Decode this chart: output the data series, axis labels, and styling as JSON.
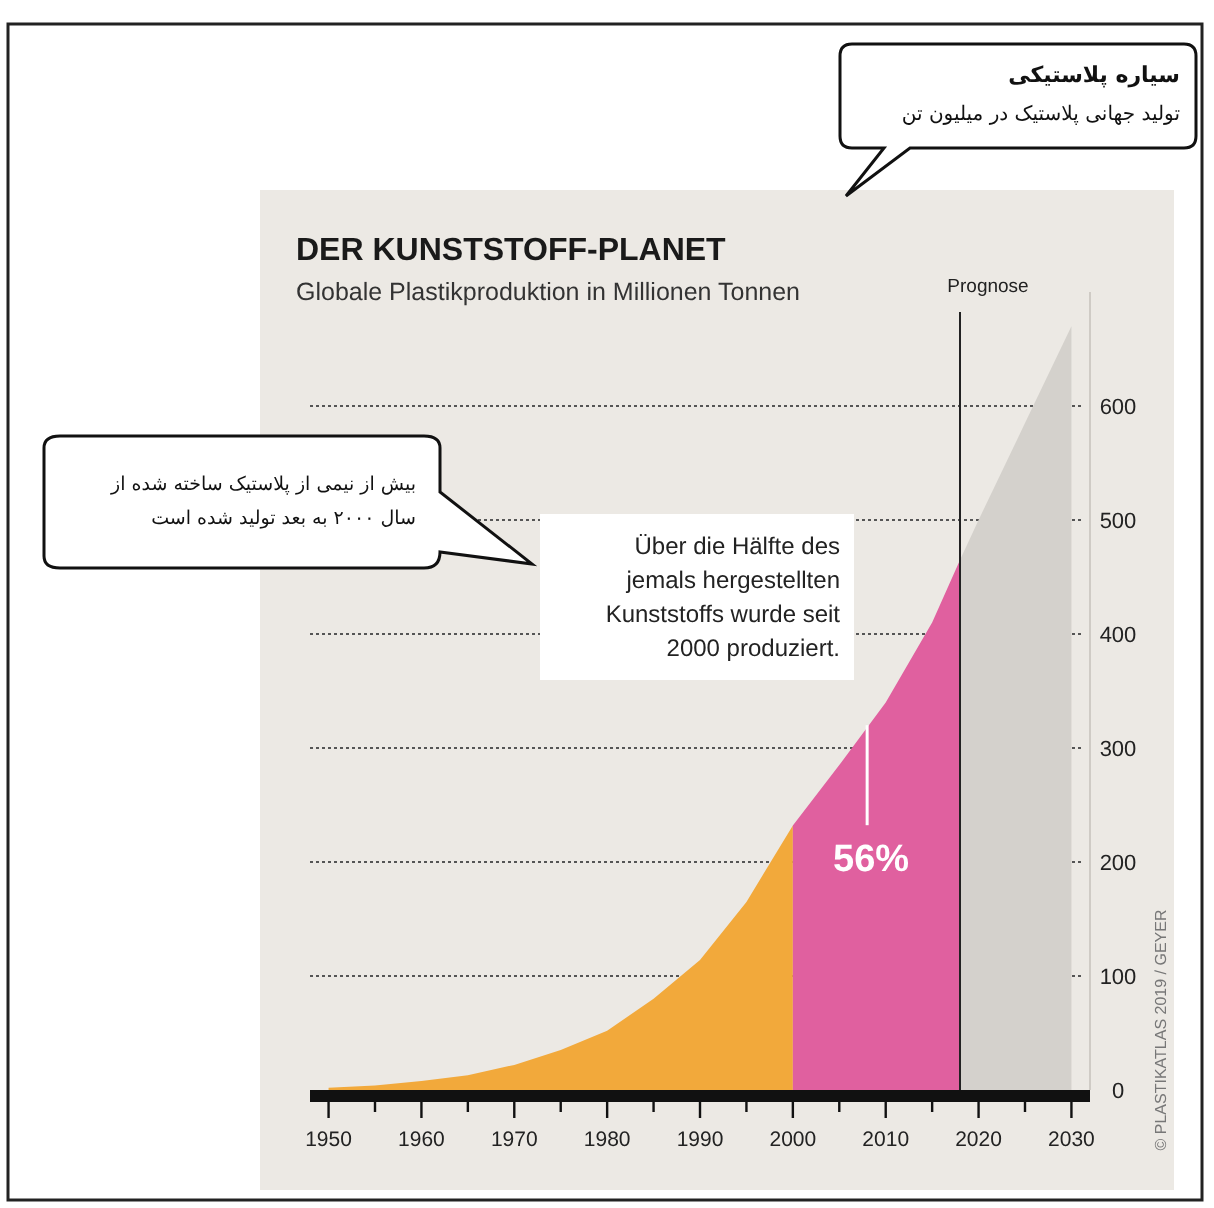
{
  "chart_data": {
    "type": "area",
    "title": "DER KUNSTSTOFF-PLANET",
    "subtitle": "Globale Plastikproduktion in Millionen Tonnen",
    "series": [
      {
        "color": "#f2a93b",
        "x": [
          1950,
          1955,
          1960,
          1965,
          1970,
          1975,
          1980,
          1985,
          1990,
          1995,
          2000
        ],
        "values": [
          2,
          4,
          8,
          13,
          22,
          35,
          52,
          80,
          114,
          165,
          232
        ]
      },
      {
        "color": "#e0609f",
        "x": [
          2000,
          2005,
          2010,
          2015,
          2018
        ],
        "values": [
          232,
          285,
          340,
          410,
          465
        ]
      },
      {
        "color": "#d4d1cc",
        "x": [
          2018,
          2020,
          2025,
          2030
        ],
        "values": [
          465,
          500,
          585,
          670
        ]
      }
    ],
    "xlim": [
      1948,
      2032
    ],
    "ylim": [
      0,
      700
    ],
    "xticks": [
      1950,
      {
        "value": 1955,
        "label": null
      },
      1960,
      {
        "value": 1965,
        "label": null
      },
      1970,
      {
        "value": 1975,
        "label": null
      },
      1980,
      {
        "value": 1985,
        "label": null
      },
      1990,
      {
        "value": 1995,
        "label": null
      },
      2000,
      {
        "value": 2005,
        "label": null
      },
      2010,
      {
        "value": 2015,
        "label": null
      },
      2020,
      {
        "value": 2025,
        "label": null
      },
      2030
    ],
    "yticks": [
      0,
      100,
      200,
      300,
      400,
      500,
      600
    ],
    "grid": "y",
    "ref_lines": [
      {
        "axis": "x",
        "value": 2018,
        "label": "Prognose",
        "color": "#222222"
      }
    ],
    "annotations": [
      "سیاره پلاستیکی",
      "تولید جهانی پلاستیک در میلیون تن",
      "بیش از نیمی از پلاستیک ساخته شده از سال ۲۰۰۰ به بعد تولید شده است",
      "Über die Hälfte des jemals hergestellten Kunststoffs wurde seit 2000 produziert.",
      {
        "text": "56%",
        "x": 2008,
        "y": 320
      },
      "© PLASTIKATLAS 2019 / GEYER"
    ]
  }
}
